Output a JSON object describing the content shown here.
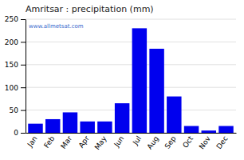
{
  "chart_data": {
    "type": "bar",
    "title": "Amritsar : precipitation (mm)",
    "categories": [
      "Jan",
      "Feb",
      "Mar",
      "Apr",
      "May",
      "Jun",
      "Jul",
      "Aug",
      "Sep",
      "Oct",
      "Nov",
      "Dec"
    ],
    "values": [
      20,
      30,
      45,
      25,
      25,
      65,
      230,
      185,
      80,
      15,
      5,
      15
    ],
    "color": "#0000EE",
    "ylim": [
      0,
      250
    ],
    "yticks": [
      0,
      50,
      100,
      150,
      200,
      250
    ],
    "grid": true,
    "annotation": "www.allmetsat.com"
  }
}
